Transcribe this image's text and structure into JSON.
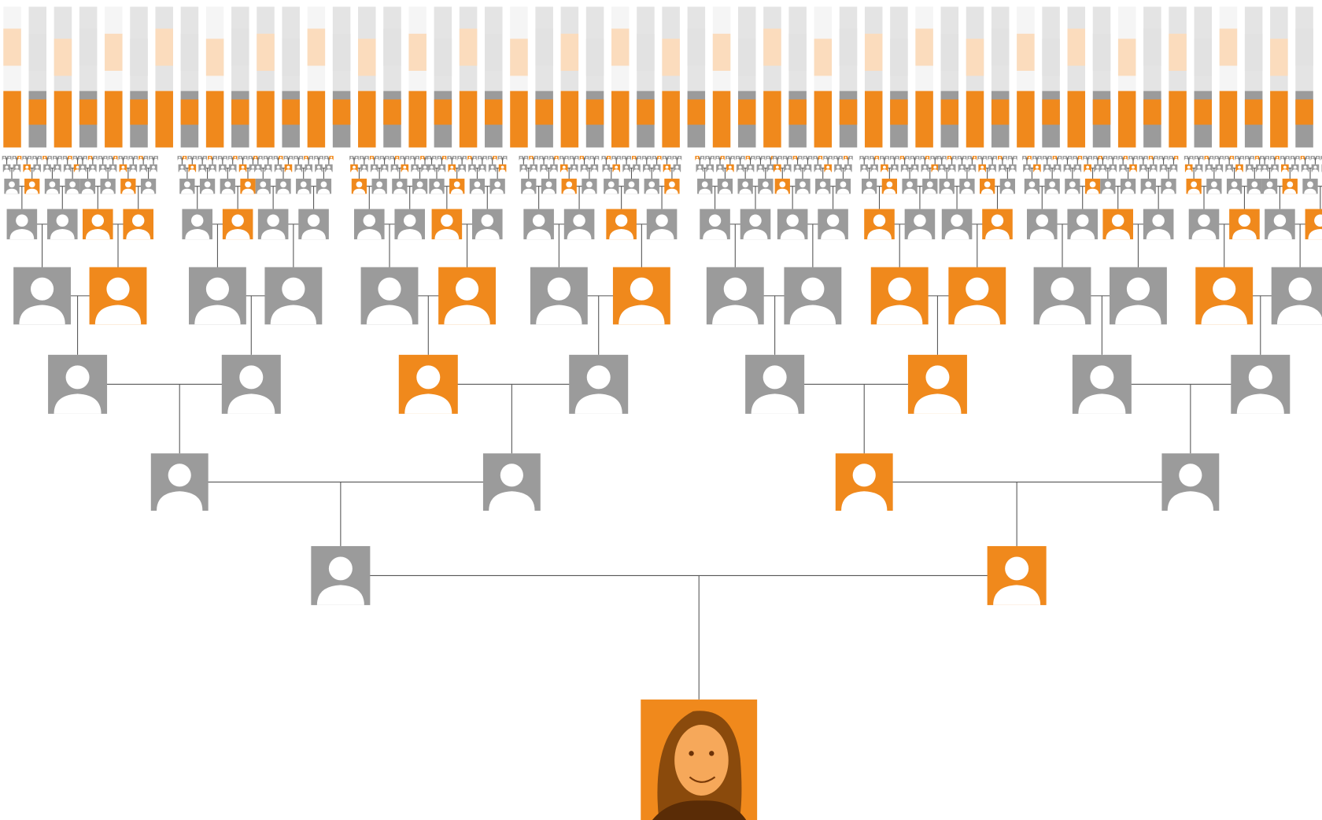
{
  "tree": {
    "highlight_color": "#f0891c",
    "base_color": "#9b9b9b",
    "line_color": "#555555",
    "generations": [
      [
        1
      ],
      [
        0,
        1
      ],
      [
        0,
        0,
        1,
        0
      ],
      [
        0,
        0,
        1,
        0,
        0,
        1,
        0,
        0
      ],
      [
        0,
        1,
        0,
        0,
        0,
        1,
        0,
        1,
        0,
        0,
        1,
        1,
        0,
        0,
        1,
        0
      ],
      [
        0,
        0,
        1,
        1,
        0,
        1,
        0,
        0,
        0,
        0,
        1,
        0,
        0,
        0,
        1,
        0,
        0,
        0,
        0,
        0,
        1,
        0,
        0,
        1,
        0,
        0,
        1,
        0,
        0,
        1,
        0,
        1
      ]
    ]
  }
}
